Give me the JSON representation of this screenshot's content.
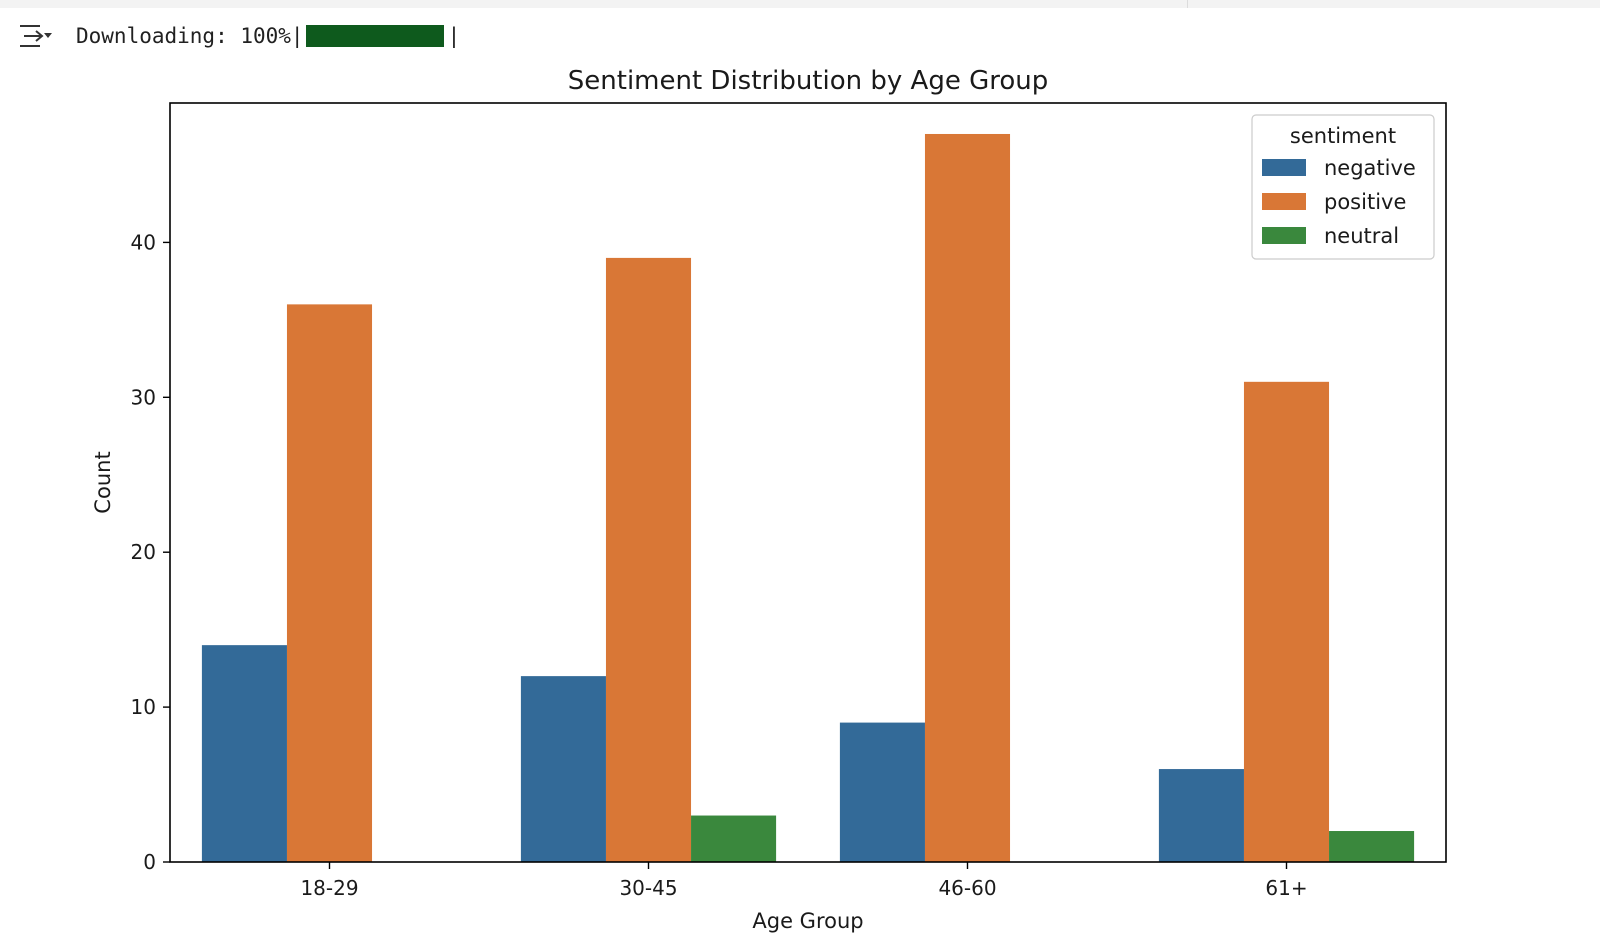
{
  "output": {
    "toggle_icon": "output-collapse-icon",
    "progress": {
      "label": "Downloading: 100%|",
      "end": "|",
      "fraction": 1.0,
      "color": "#0e5a1d"
    }
  },
  "chart_data": {
    "type": "bar",
    "title": "Sentiment Distribution by Age Group",
    "xlabel": "Age Group",
    "ylabel": "Count",
    "categories": [
      "18-29",
      "30-45",
      "46-60",
      "61+"
    ],
    "ylim": [
      0,
      49
    ],
    "yticks": [
      "0",
      "10",
      "20",
      "30",
      "40"
    ],
    "grid": false,
    "legend": {
      "title": "sentiment",
      "placement": "top-right"
    },
    "series": [
      {
        "name": "negative",
        "color": "#336a98",
        "values": [
          14,
          12,
          9,
          6
        ]
      },
      {
        "name": "positive",
        "color": "#d97736",
        "values": [
          36,
          39,
          47,
          31
        ]
      },
      {
        "name": "neutral",
        "color": "#3a883d",
        "values": [
          0,
          3,
          0,
          2
        ]
      }
    ]
  }
}
